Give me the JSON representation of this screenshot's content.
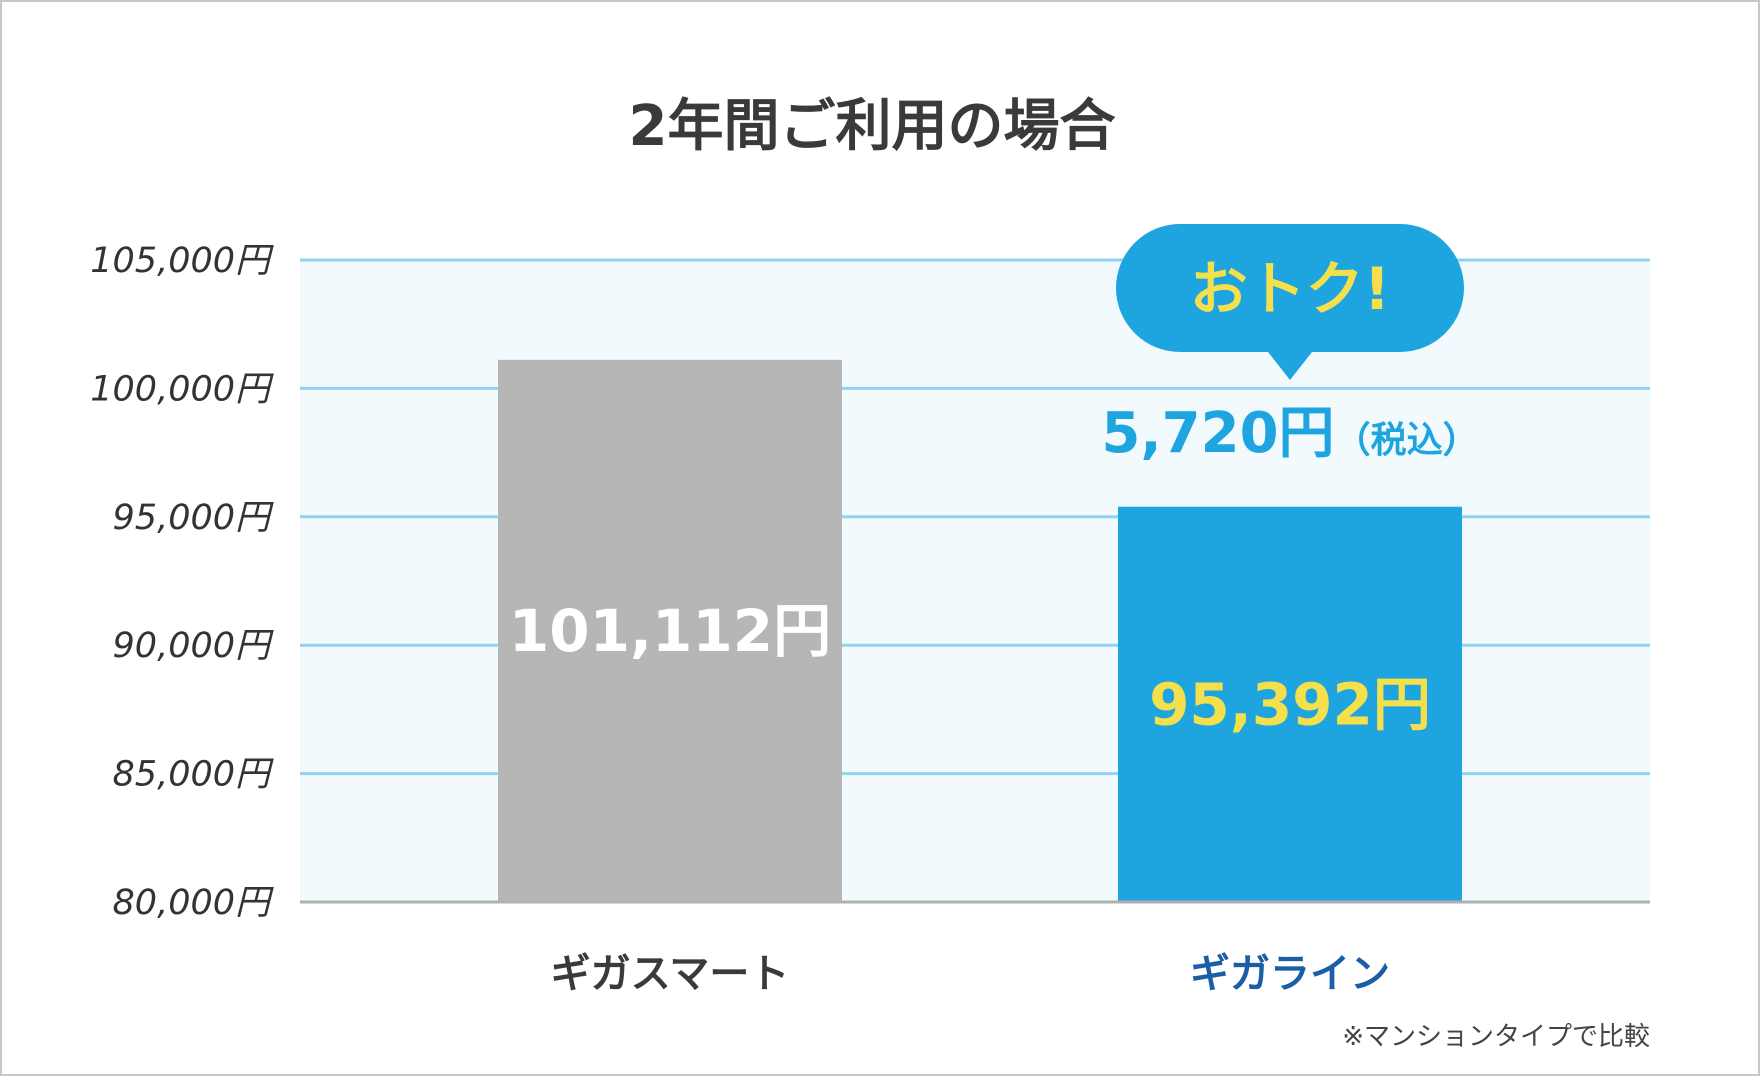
{
  "chart_data": {
    "type": "bar",
    "title": "2年間ご利用の場合",
    "categories": [
      "ギガスマート",
      "ギガライン"
    ],
    "values": [
      101112,
      95392
    ],
    "value_labels": [
      "101,112円",
      "95,392円"
    ],
    "ylim": [
      80000,
      105000
    ],
    "yticks": [
      80000,
      85000,
      90000,
      95000,
      100000,
      105000
    ],
    "ytick_labels": [
      "80,000円",
      "85,000円",
      "90,000円",
      "95,000円",
      "100,000円",
      "105,000円"
    ],
    "grid": true,
    "colors": {
      "bars": [
        "#b6b6b6",
        "#1ea4df"
      ],
      "value_label_text": [
        "#ffffff",
        "#f4e04d"
      ],
      "category_text": [
        "#3a3a3a",
        "#1b5ea8"
      ],
      "plot_background": "#f2fafd",
      "gridline": "#8fd3ef",
      "baseline": "#b0b0b0"
    },
    "annotation": {
      "callout": "おトク!",
      "savings": "5,720円",
      "savings_suffix": "（税込）",
      "callout_color": "#1ea4df",
      "callout_text_color": "#f4e04d"
    },
    "footnote": "※マンションタイプで比較"
  }
}
